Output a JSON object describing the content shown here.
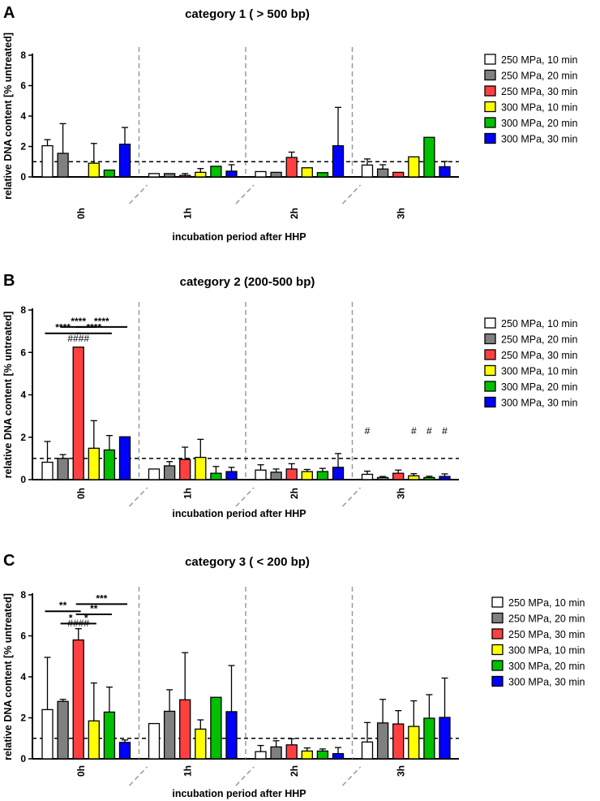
{
  "figure_labels": [
    "A",
    "B",
    "C"
  ],
  "chart_data": [
    {
      "panel": "A",
      "type": "bar",
      "title": "category 1 ( > 500 bp)",
      "xlabel": "incubation period after HHP",
      "ylabel": "relative DNA content [% untreated]",
      "ylim": [
        0,
        8
      ],
      "yticks": [
        "0",
        "2",
        "4",
        "6",
        "8"
      ],
      "reference_line": 1,
      "categories": [
        "0h",
        "1h",
        "2h",
        "3h"
      ],
      "series": [
        {
          "name": "250 MPa, 10 min",
          "color": "#ffffff",
          "values": [
            2.05,
            0.22,
            0.35,
            0.78
          ],
          "errors": [
            0.4,
            0,
            0,
            0.4
          ]
        },
        {
          "name": "250 MPa, 20 min",
          "color": "#808080",
          "values": [
            1.55,
            0.22,
            0.3,
            0.52
          ],
          "errors": [
            1.95,
            0,
            0,
            0.28
          ]
        },
        {
          "name": "250 MPa, 30 min",
          "color": "#ff4040",
          "values": [
            0,
            0.1,
            1.28,
            0.3
          ],
          "errors": [
            0,
            0.12,
            0.35,
            0
          ]
        },
        {
          "name": "300 MPa, 10 min",
          "color": "#ffff00",
          "values": [
            0.9,
            0.3,
            0.6,
            1.32
          ],
          "errors": [
            1.3,
            0.25,
            0,
            0
          ]
        },
        {
          "name": "300 MPa, 20 min",
          "color": "#00c000",
          "values": [
            0.45,
            0.7,
            0.28,
            2.6
          ],
          "errors": [
            0,
            0,
            0,
            0
          ]
        },
        {
          "name": "300 MPa, 30 min",
          "color": "#0000ff",
          "values": [
            2.15,
            0.38,
            2.05,
            0.67
          ],
          "errors": [
            1.1,
            0.42,
            2.52,
            0.35
          ]
        }
      ],
      "significance_stars": [],
      "hash_marks": []
    },
    {
      "panel": "B",
      "type": "bar",
      "title": "category 2 (200-500 bp)",
      "xlabel": "incubation period after HHP",
      "ylabel": "relative DNA content [% untreated]",
      "ylim": [
        0,
        8
      ],
      "yticks": [
        "0",
        "2",
        "4",
        "6",
        "8"
      ],
      "reference_line": 1,
      "categories": [
        "0h",
        "1h",
        "2h",
        "3h"
      ],
      "series": [
        {
          "name": "250 MPa, 10 min",
          "color": "#ffffff",
          "values": [
            0.82,
            0.5,
            0.45,
            0.25
          ],
          "errors": [
            0.98,
            0,
            0.25,
            0.15
          ]
        },
        {
          "name": "250 MPa, 20 min",
          "color": "#808080",
          "values": [
            1.0,
            0.65,
            0.35,
            0.1
          ],
          "errors": [
            0.18,
            0.2,
            0.15,
            0.05
          ]
        },
        {
          "name": "250 MPa, 30 min",
          "color": "#ff4040",
          "values": [
            6.25,
            0.95,
            0.5,
            0.3
          ],
          "errors": [
            0,
            0.58,
            0.25,
            0.15
          ]
        },
        {
          "name": "300 MPa, 10 min",
          "color": "#ffff00",
          "values": [
            1.48,
            1.05,
            0.38,
            0.18
          ],
          "errors": [
            1.3,
            0.85,
            0.1,
            0.1
          ]
        },
        {
          "name": "300 MPa, 20 min",
          "color": "#00c000",
          "values": [
            1.4,
            0.3,
            0.38,
            0.1
          ],
          "errors": [
            0.68,
            0.32,
            0.15,
            0.06
          ]
        },
        {
          "name": "300 MPa, 30 min",
          "color": "#0000ff",
          "values": [
            2.02,
            0.38,
            0.58,
            0.15
          ],
          "errors": [
            0,
            0.2,
            0.65,
            0.12
          ]
        }
      ],
      "significance_stars": [
        {
          "from_series": 1,
          "to_series": 3,
          "label": "****",
          "level": 7.2
        },
        {
          "from_series": 0,
          "to_series": 2,
          "label": "****",
          "level": 6.9
        },
        {
          "from_series": 2,
          "to_series": 5,
          "label": "****",
          "level": 7.2
        },
        {
          "from_series": 2,
          "to_series": 4,
          "label": "****",
          "level": 6.9
        }
      ],
      "hash_marks": [
        {
          "category": 0,
          "series": 2,
          "label": "####",
          "level": 6.5
        },
        {
          "category": 3,
          "series": 0,
          "label": "#",
          "level": 2.15
        },
        {
          "category": 3,
          "series": 3,
          "label": "#",
          "level": 2.15
        },
        {
          "category": 3,
          "series": 4,
          "label": "#",
          "level": 2.15
        },
        {
          "category": 3,
          "series": 5,
          "label": "#",
          "level": 2.15
        }
      ]
    },
    {
      "panel": "C",
      "type": "bar",
      "title": "category 3 ( < 200 bp)",
      "xlabel": "incubation period after HHP",
      "ylabel": "relative DNA content [% untreated]",
      "ylim": [
        0,
        8
      ],
      "yticks": [
        "0",
        "2",
        "4",
        "6",
        "8"
      ],
      "reference_line": 1,
      "categories": [
        "0h",
        "1h",
        "2h",
        "3h"
      ],
      "series": [
        {
          "name": "250 MPa, 10 min",
          "color": "#ffffff",
          "values": [
            2.4,
            1.72,
            0.35,
            0.82
          ],
          "errors": [
            2.55,
            0,
            0.3,
            0.95
          ]
        },
        {
          "name": "250 MPa, 20 min",
          "color": "#808080",
          "values": [
            2.8,
            2.32,
            0.58,
            1.75
          ],
          "errors": [
            0.1,
            1.05,
            0.3,
            1.15
          ]
        },
        {
          "name": "250 MPa, 30 min",
          "color": "#ff4040",
          "values": [
            5.8,
            2.88,
            0.68,
            1.7
          ],
          "errors": [
            0.55,
            2.3,
            0.3,
            0.65
          ]
        },
        {
          "name": "300 MPa, 10 min",
          "color": "#ffff00",
          "values": [
            1.85,
            1.45,
            0.38,
            1.58
          ],
          "errors": [
            1.85,
            0.45,
            0.15,
            1.25
          ]
        },
        {
          "name": "300 MPa, 20 min",
          "color": "#00c000",
          "values": [
            2.28,
            3.0,
            0.38,
            1.98
          ],
          "errors": [
            1.22,
            0,
            0.1,
            1.15
          ]
        },
        {
          "name": "300 MPa, 30 min",
          "color": "#0000ff",
          "values": [
            0.8,
            2.3,
            0.25,
            2.02
          ],
          "errors": [
            0.12,
            2.25,
            0.3,
            1.92
          ]
        }
      ],
      "significance_stars": [
        {
          "from_series": 0,
          "to_series": 2,
          "label": "**",
          "level": 7.2
        },
        {
          "from_series": 1,
          "to_series": 2,
          "label": "*",
          "level": 6.6
        },
        {
          "from_series": 2,
          "to_series": 3,
          "label": "*",
          "level": 6.6
        },
        {
          "from_series": 2,
          "to_series": 4,
          "label": "**",
          "level": 7.05
        },
        {
          "from_series": 2,
          "to_series": 5,
          "label": "***",
          "level": 7.55
        }
      ],
      "hash_marks": [
        {
          "category": 0,
          "series": 2,
          "label": "####",
          "level": 6.45
        }
      ]
    }
  ]
}
